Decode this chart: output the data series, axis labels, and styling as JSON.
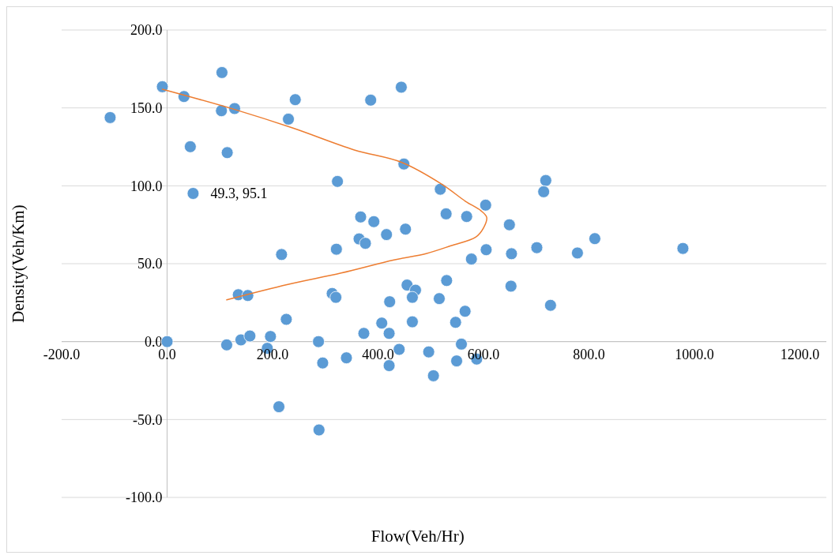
{
  "chart_data": {
    "type": "scatter",
    "xlabel": "Flow(Veh/Hr)",
    "ylabel": "Density(Veh/Km)",
    "xlim": [
      -200,
      1250
    ],
    "ylim": [
      -100,
      200
    ],
    "xticks": [
      {
        "value": -200,
        "label": "-200.0"
      },
      {
        "value": 0,
        "label": "0.0"
      },
      {
        "value": 200,
        "label": "200.0"
      },
      {
        "value": 400,
        "label": "400.0"
      },
      {
        "value": 600,
        "label": "600.0"
      },
      {
        "value": 800,
        "label": "800.0"
      },
      {
        "value": 1000,
        "label": "1000.0"
      },
      {
        "value": 1200,
        "label": "1200.0"
      }
    ],
    "yticks": [
      {
        "value": -100,
        "label": "-100.0"
      },
      {
        "value": -50,
        "label": "-50.0"
      },
      {
        "value": 0,
        "label": "0.0"
      },
      {
        "value": 50,
        "label": "50.0"
      },
      {
        "value": 100,
        "label": "100.0"
      },
      {
        "value": 150,
        "label": "150.0"
      },
      {
        "value": 200,
        "label": "200.0"
      }
    ],
    "grid": "y",
    "annotations": [
      {
        "text": "49.3, 95.1",
        "x": 49.3,
        "y": 95.1
      }
    ],
    "series": [
      {
        "color": "#5b9bd5",
        "marker": "circle",
        "x": [
          -9,
          -108,
          32,
          104,
          103,
          128,
          44,
          114,
          49.3,
          243,
          230,
          386,
          444,
          449,
          323,
          518,
          604,
          718,
          714,
          367,
          392,
          452,
          416,
          364,
          376,
          321,
          217,
          529,
          568,
          649,
          605,
          653,
          577,
          701,
          778,
          811,
          978,
          530,
          455,
          471,
          465,
          516,
          422,
          313,
          320,
          135,
          153,
          226,
          565,
          547,
          465,
          407,
          373,
          421,
          0,
          113,
          140,
          157,
          196,
          190,
          287,
          295,
          340,
          421,
          440,
          496,
          505,
          549,
          558,
          587,
          212,
          288,
          652,
          727
        ],
        "values": [
          163.6,
          143.8,
          157.3,
          172.7,
          148.2,
          149.6,
          125.1,
          121.3,
          95.1,
          155.3,
          142.8,
          155,
          163.3,
          114,
          102.8,
          97.8,
          87.6,
          103.4,
          96.2,
          80,
          77,
          72.2,
          68.7,
          65.9,
          63.1,
          59.3,
          55.9,
          82,
          80.3,
          75,
          59,
          56.4,
          53,
          60.3,
          56.9,
          66.1,
          59.8,
          39.2,
          36.3,
          33,
          28.4,
          27.6,
          25.6,
          30.9,
          28.4,
          30.1,
          29.6,
          14.3,
          19.5,
          12.4,
          12.7,
          11.9,
          5.3,
          5.3,
          0,
          -2.1,
          1.1,
          3.6,
          3.3,
          -4.3,
          0,
          -13.7,
          -10.4,
          -15.4,
          -5,
          -6.6,
          -21.9,
          -12.4,
          -1.6,
          -11.2,
          -41.8,
          -56.7,
          35.6,
          23.3
        ]
      },
      {
        "type": "line",
        "color": "#ed7d31",
        "marker": "none",
        "line_style": "solid",
        "x": [
          -9,
          128,
          239,
          355,
          445,
          521,
          566,
          595,
          606,
          600,
          585,
          538,
          491,
          430,
          330,
          229,
          113
        ],
        "values": [
          162,
          149,
          137,
          123,
          115,
          101,
          90,
          84,
          79.7,
          73,
          67,
          61.5,
          56.5,
          52.4,
          44,
          36.7,
          26.8
        ]
      }
    ]
  }
}
